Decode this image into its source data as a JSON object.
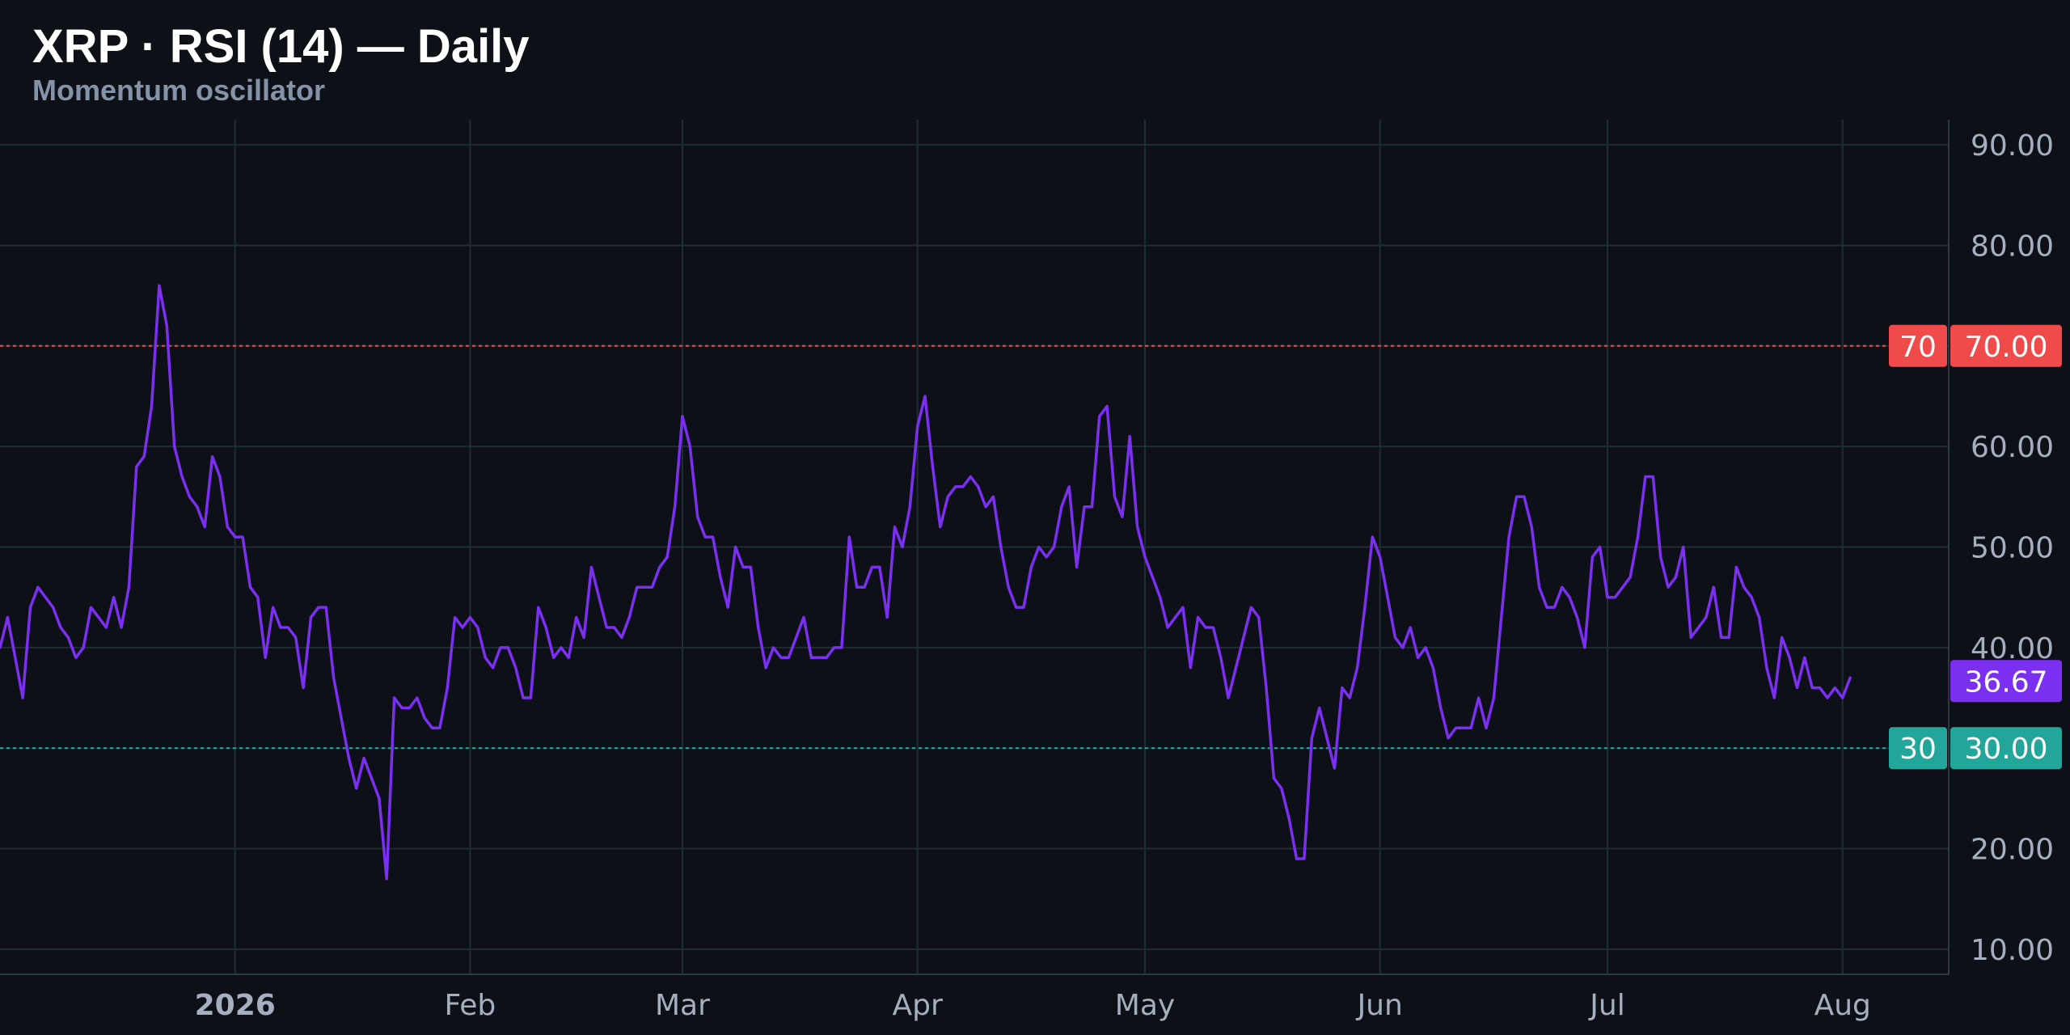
{
  "header": {
    "title": "XRP · RSI (14) — Daily",
    "subtitle": "Momentum oscillator"
  },
  "colors": {
    "background": "#0d1017",
    "grid": "#1f2d35",
    "line": "#7b2ff0",
    "overbought": "#ef4b4b",
    "oversold": "#23a69a",
    "current": "#7b2ff0"
  },
  "chart_data": {
    "type": "line",
    "title": "XRP · RSI (14) — Daily",
    "subtitle": "Momentum oscillator",
    "x_start": "2025-12-01",
    "x_end": "2026-08-15",
    "x_tick_labels": [
      {
        "date": "2026-01-01",
        "label": "2026",
        "bold": true
      },
      {
        "date": "2026-02-01",
        "label": "Feb",
        "bold": false
      },
      {
        "date": "2026-03-01",
        "label": "Mar",
        "bold": false
      },
      {
        "date": "2026-04-01",
        "label": "Apr",
        "bold": false
      },
      {
        "date": "2026-05-01",
        "label": "May",
        "bold": false
      },
      {
        "date": "2026-06-01",
        "label": "Jun",
        "bold": false
      },
      {
        "date": "2026-07-01",
        "label": "Jul",
        "bold": false
      },
      {
        "date": "2026-08-01",
        "label": "Aug",
        "bold": false
      }
    ],
    "ylim": [
      7.5,
      92.5
    ],
    "y_ticks": [
      {
        "value": 10,
        "label": "10.00"
      },
      {
        "value": 20,
        "label": "20.00"
      },
      {
        "value": 40,
        "label": "40.00"
      },
      {
        "value": 50,
        "label": "50.00"
      },
      {
        "value": 60,
        "label": "60.00"
      },
      {
        "value": 80,
        "label": "80.00"
      },
      {
        "value": 90,
        "label": "90.00"
      }
    ],
    "grid": true,
    "levels": [
      {
        "value": 70,
        "short_label": "70",
        "axis_label": "70.00",
        "color": "#ef4b4b"
      },
      {
        "value": 30,
        "short_label": "30",
        "axis_label": "30.00",
        "color": "#23a69a"
      }
    ],
    "current": {
      "value": 36.67,
      "label": "36.67"
    },
    "series": [
      {
        "start_date": "2025-12-01",
        "values": [
          40,
          43,
          39,
          35,
          44,
          46,
          45,
          44,
          42,
          41,
          39,
          40,
          44,
          43,
          42,
          45,
          42,
          46,
          58,
          59,
          64,
          76,
          72,
          60,
          57,
          55,
          54,
          52,
          59,
          57,
          52,
          51,
          51,
          46,
          45,
          39,
          44,
          42,
          42,
          41,
          36,
          43,
          44,
          44,
          37,
          33,
          29,
          26,
          29,
          27,
          25,
          17,
          35,
          34,
          34,
          35,
          33,
          32,
          32,
          36,
          43,
          42,
          43,
          42,
          39,
          38,
          40,
          40,
          38,
          35,
          35,
          44,
          42,
          39,
          40,
          39,
          43,
          41,
          48,
          45,
          42,
          42,
          41,
          43,
          46,
          46,
          46,
          48,
          49,
          54,
          63,
          60,
          53,
          51,
          51,
          47,
          44,
          50,
          48,
          48,
          42,
          38,
          40,
          39,
          39,
          41,
          43,
          39,
          39,
          39,
          40,
          40,
          51,
          46,
          46,
          48,
          48,
          43,
          52,
          50,
          54,
          62,
          65,
          58,
          52,
          55,
          56,
          56,
          57,
          56,
          54,
          55,
          50,
          46,
          44,
          44,
          48,
          50,
          49,
          50,
          54,
          56,
          48,
          54,
          54,
          63,
          64,
          55,
          53,
          61,
          52,
          49,
          47,
          45,
          42,
          43,
          44,
          38,
          43,
          42,
          42,
          39,
          35,
          38,
          41,
          44,
          43,
          36,
          27,
          26,
          23,
          19,
          19,
          31,
          34,
          31,
          28,
          36,
          35,
          38,
          44,
          51,
          49,
          45,
          41,
          40,
          42,
          39,
          40,
          38,
          34,
          31,
          32,
          32,
          32,
          35,
          32,
          35,
          43,
          51,
          55,
          55,
          52,
          46,
          44,
          44,
          46,
          45,
          43,
          40,
          49,
          50,
          45,
          45,
          46,
          47,
          51,
          57,
          57,
          49,
          46,
          47,
          50,
          41,
          42,
          43,
          46,
          41,
          41,
          48,
          46,
          45,
          43,
          38,
          35,
          41,
          39,
          36,
          39,
          36,
          36,
          35,
          36,
          35,
          37
        ]
      }
    ]
  }
}
